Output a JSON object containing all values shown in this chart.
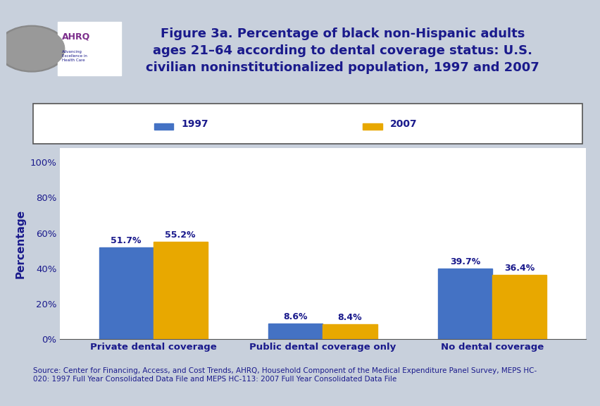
{
  "title": "Figure 3a. Percentage of black non-Hispanic adults\nages 21–64 according to dental coverage status: U.S.\ncivilian noninstitutionalized population, 1997 and 2007",
  "categories": [
    "Private dental coverage",
    "Public dental coverage only",
    "No dental coverage"
  ],
  "series": [
    {
      "label": "1997",
      "values": [
        51.7,
        8.6,
        39.7
      ],
      "color": "#4472C4"
    },
    {
      "label": "2007",
      "values": [
        55.2,
        8.4,
        36.4
      ],
      "color": "#E8A800"
    }
  ],
  "ylabel": "Percentage",
  "yticks": [
    0,
    20,
    40,
    60,
    80,
    100
  ],
  "ytick_labels": [
    "0%",
    "20%",
    "40%",
    "60%",
    "80%",
    "100%"
  ],
  "bar_width": 0.32,
  "chart_bg": "#FFFFFF",
  "outer_bg": "#C8D0DC",
  "header_bg": "#FFFFFF",
  "stripe_color": "#00008B",
  "title_color": "#1A1A8C",
  "axis_label_color": "#1A1A8C",
  "tick_label_color": "#1A1A8C",
  "value_label_color": "#1A1A8C",
  "legend_text_color": "#1A1A8C",
  "source_text": "Source: Center for Financing, Access, and Cost Trends, AHRQ, Household Component of the Medical Expenditure Panel Survey, MEPS HC-\n020: 1997 Full Year Consolidated Data File and MEPS HC-113: 2007 Full Year Consolidated Data File",
  "source_color": "#1A1A8C",
  "source_fontsize": 7.5,
  "logo_bg": "#1B9BD1",
  "logo_text_color": "#FFFFFF"
}
